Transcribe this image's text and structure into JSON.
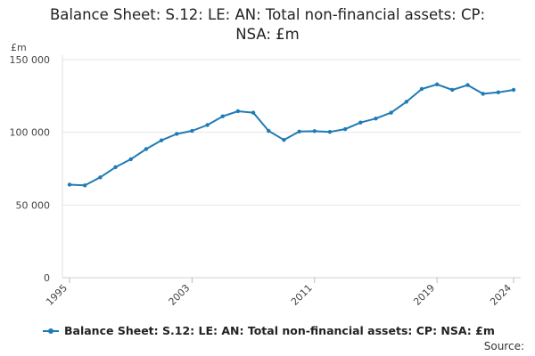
{
  "chart_data": {
    "type": "line",
    "title": "Balance Sheet: S.12: LE: AN: Total non-financial assets: CP: NSA: £m",
    "title_lines": [
      "Balance Sheet: S.12: LE: AN: Total non-financial assets: CP:",
      "NSA: £m"
    ],
    "ylabel": "£m",
    "xlabel": "",
    "ylim": [
      0,
      150000
    ],
    "yticks": [
      0,
      50000,
      100000,
      150000
    ],
    "ytick_labels": [
      "0",
      "50 000",
      "100 000",
      "150 000"
    ],
    "xlim": [
      1995,
      2024
    ],
    "xticks": [
      1995,
      2003,
      2011,
      2019,
      2024
    ],
    "xtick_labels": [
      "1995",
      "2003",
      "2011",
      "2019",
      "2024"
    ],
    "series": [
      {
        "name": "Balance Sheet: S.12: LE: AN: Total non-financial assets: CP: NSA: £m",
        "color": "#1f7bb5",
        "x": [
          1995,
          1996,
          1997,
          1998,
          1999,
          2000,
          2001,
          2002,
          2003,
          2004,
          2005,
          2006,
          2007,
          2008,
          2009,
          2010,
          2011,
          2012,
          2013,
          2014,
          2015,
          2016,
          2017,
          2018,
          2019,
          2020,
          2021,
          2022,
          2023,
          2024
        ],
        "values": [
          64000,
          63500,
          69000,
          76000,
          81500,
          88500,
          94500,
          98900,
          101000,
          105000,
          111000,
          114500,
          113500,
          101000,
          94800,
          100500,
          100800,
          100300,
          102200,
          106700,
          109500,
          113500,
          121000,
          129800,
          133000,
          129200,
          132500,
          126500,
          127500,
          129200
        ]
      }
    ],
    "grid": true,
    "legend": "bottom"
  },
  "source_label": "Source:"
}
